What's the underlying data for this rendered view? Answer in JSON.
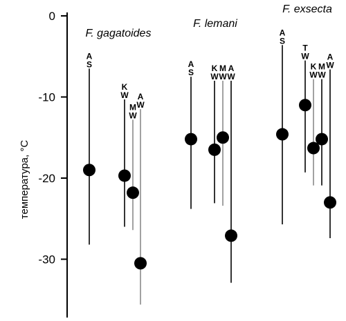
{
  "chart_data": {
    "type": "scatter",
    "title": "",
    "ylabel": "температура, °C",
    "xlabel": "",
    "ylim": [
      -37,
      1
    ],
    "yticks": [
      0,
      -10,
      -20,
      -30
    ],
    "ytick_labels": [
      "0",
      "-10",
      "-20",
      "-30"
    ],
    "grid": false,
    "groups": [
      "F. gagatoides",
      "F. lemani",
      "F. exsecta"
    ],
    "points": [
      {
        "group": "F. gagatoides",
        "code_top": "A",
        "code_bottom": "S",
        "value": -19.0,
        "range": [
          -28.2,
          -6.5
        ],
        "whisker": "black"
      },
      {
        "group": "F. gagatoides",
        "code_top": "K",
        "code_bottom": "W",
        "value": -19.7,
        "range": [
          -26.0,
          -10.3
        ],
        "whisker": "black"
      },
      {
        "group": "F. gagatoides",
        "code_top": "M",
        "code_bottom": "W",
        "value": -21.8,
        "range": [
          -26.4,
          -12.8
        ],
        "whisker": "gray"
      },
      {
        "group": "F. gagatoides",
        "code_top": "A",
        "code_bottom": "W",
        "value": -30.5,
        "range": [
          -35.6,
          -11.5
        ],
        "whisker": "gray"
      },
      {
        "group": "F. lemani",
        "code_top": "A",
        "code_bottom": "S",
        "value": -15.2,
        "range": [
          -23.8,
          -7.5
        ],
        "whisker": "black"
      },
      {
        "group": "F. lemani",
        "code_top": "K",
        "code_bottom": "W",
        "value": -16.5,
        "range": [
          -23.1,
          -8.0
        ],
        "whisker": "black"
      },
      {
        "group": "F. lemani",
        "code_top": "M",
        "code_bottom": "W",
        "value": -15.0,
        "range": [
          -23.4,
          -8.0
        ],
        "whisker": "gray"
      },
      {
        "group": "F. lemani",
        "code_top": "A",
        "code_bottom": "W",
        "value": -27.1,
        "range": [
          -32.9,
          -8.0
        ],
        "whisker": "black"
      },
      {
        "group": "F. exsecta",
        "code_top": "A",
        "code_bottom": "S",
        "value": -14.6,
        "range": [
          -25.7,
          -3.6
        ],
        "whisker": "black"
      },
      {
        "group": "F. exsecta",
        "code_top": "T",
        "code_bottom": "W",
        "value": -11.0,
        "range": [
          -19.3,
          -5.5
        ],
        "whisker": "black"
      },
      {
        "group": "F. exsecta",
        "code_top": "K",
        "code_bottom": "W",
        "value": -16.3,
        "range": [
          -20.9,
          -7.8
        ],
        "whisker": "gray"
      },
      {
        "group": "F. exsecta",
        "code_top": "M",
        "code_bottom": "W",
        "value": -15.2,
        "range": [
          -20.9,
          -7.8
        ],
        "whisker": "black"
      },
      {
        "group": "F. exsecta",
        "code_top": "A",
        "code_bottom": "W",
        "value": -23.0,
        "range": [
          -27.4,
          -6.6
        ],
        "whisker": "black"
      }
    ],
    "colors": {
      "marker": "#000000",
      "black_whisker": "#000000",
      "gray_whisker": "#8a8a8a"
    }
  }
}
